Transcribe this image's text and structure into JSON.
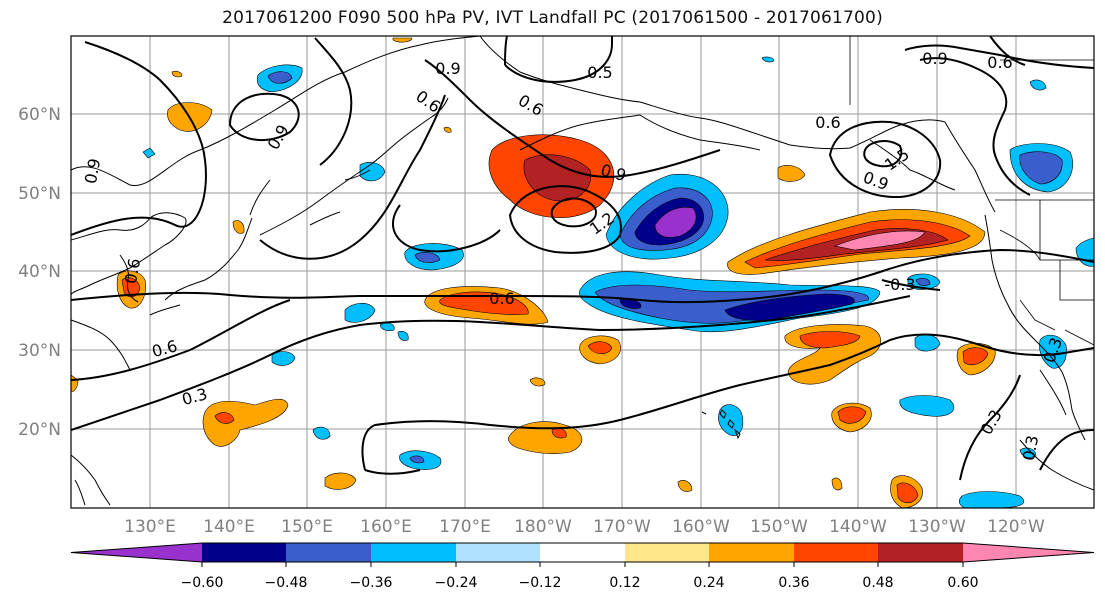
{
  "title": "2017061200 F090 500 hPa PV, IVT Landfall PC (2017061500 - 2017061700)",
  "map": {
    "lat_labels": [
      "60°N",
      "50°N",
      "40°N",
      "30°N",
      "20°N"
    ],
    "lon_labels": [
      "130°E",
      "140°E",
      "150°E",
      "160°E",
      "170°E",
      "180°W",
      "170°W",
      "160°W",
      "150°W",
      "140°W",
      "130°W",
      "120°W"
    ]
  },
  "contour_labels": [
    "0.9",
    "0.6",
    "0.5",
    "0.9",
    "0.6",
    "0.9",
    "0.6",
    "0.9",
    "0.6",
    "0.9",
    "1.2",
    "0.6",
    "1.5",
    "0.9",
    "0.6",
    "0.6",
    "0.3",
    "0.3",
    "-0.3",
    "0.3",
    "0.3"
  ],
  "colorbar": {
    "ticks": [
      "−0.60",
      "−0.48",
      "−0.36",
      "−0.24",
      "−0.12",
      "0.12",
      "0.24",
      "0.36",
      "0.48",
      "0.60"
    ],
    "colors": [
      "#9932cc",
      "#00008b",
      "#3a5fcd",
      "#00bfff",
      "#b0e2ff",
      "#ffffff",
      "#ffe78a",
      "#ffa500",
      "#ff4500",
      "#b22222",
      "#ff86b0"
    ]
  }
}
